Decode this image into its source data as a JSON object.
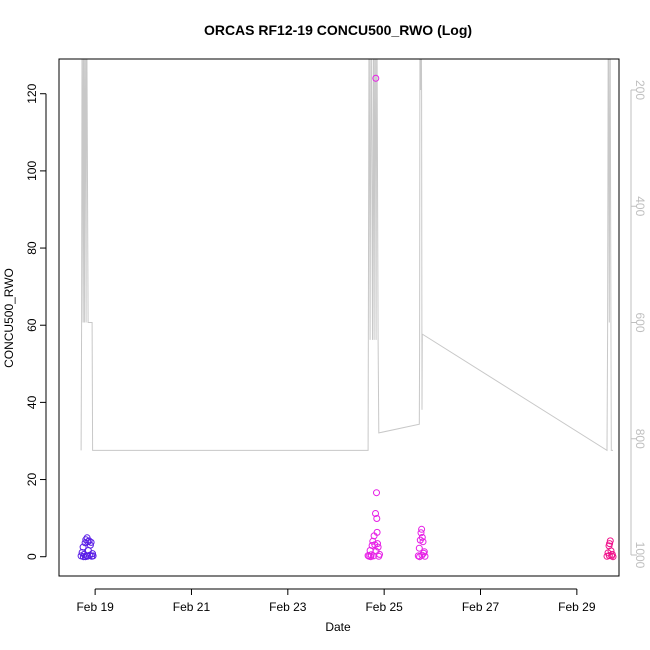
{
  "chart_data": {
    "type": "scatter",
    "title": "ORCAS RF12-19 CONCU500_RWO (Log)",
    "xlabel": "Date",
    "ylabel": "CONCU500_RWO",
    "x_unit": "date",
    "xlim": [
      "2016-02-18T06:00",
      "2016-02-29T21:00"
    ],
    "ylim": [
      -5,
      129
    ],
    "y_ticks": [
      0,
      20,
      40,
      60,
      80,
      100,
      120
    ],
    "x_ticks": [
      {
        "date": "2016-02-19",
        "label": "Feb 19"
      },
      {
        "date": "2016-02-21",
        "label": "Feb 21"
      },
      {
        "date": "2016-02-23",
        "label": "Feb 23"
      },
      {
        "date": "2016-02-25",
        "label": "Feb 25"
      },
      {
        "date": "2016-02-27",
        "label": "Feb 27"
      },
      {
        "date": "2016-02-29",
        "label": "Feb 29"
      }
    ],
    "y2_axis": {
      "side": "right",
      "color": "#bfbfbf",
      "inverted": true,
      "ticks": [
        200,
        400,
        600,
        800,
        1000
      ]
    },
    "scatter_series": [
      {
        "color": "#5a1ee6",
        "points": [
          [
            "2016-02-18T17:00",
            0.2
          ],
          [
            "2016-02-18T17:30",
            1.1
          ],
          [
            "2016-02-18T18:00",
            2.5
          ],
          [
            "2016-02-18T18:30",
            0.6
          ],
          [
            "2016-02-18T19:00",
            3.6
          ],
          [
            "2016-02-18T19:20",
            4.4
          ],
          [
            "2016-02-18T19:40",
            0.3
          ],
          [
            "2016-02-18T20:00",
            4.9
          ],
          [
            "2016-02-18T20:20",
            3.9
          ],
          [
            "2016-02-18T20:40",
            1.6
          ],
          [
            "2016-02-18T21:00",
            4.1
          ],
          [
            "2016-02-18T21:20",
            0.4
          ],
          [
            "2016-02-18T21:40",
            3.0
          ],
          [
            "2016-02-18T22:00",
            3.7
          ],
          [
            "2016-02-18T22:20",
            0.1
          ],
          [
            "2016-02-18T22:40",
            0.8
          ],
          [
            "2016-02-18T23:00",
            0.2
          ],
          [
            "2016-02-18T18:10",
            0.0
          ],
          [
            "2016-02-18T19:10",
            0.0
          ],
          [
            "2016-02-18T20:10",
            0.1
          ]
        ]
      },
      {
        "color": "#e61ee6",
        "points": [
          [
            "2016-02-24T16:00",
            0.3
          ],
          [
            "2016-02-24T16:30",
            0.1
          ],
          [
            "2016-02-24T17:00",
            1.6
          ],
          [
            "2016-02-24T17:30",
            0.5
          ],
          [
            "2016-02-24T18:00",
            2.9
          ],
          [
            "2016-02-24T18:20",
            4.0
          ],
          [
            "2016-02-24T18:40",
            0.2
          ],
          [
            "2016-02-24T19:00",
            5.4
          ],
          [
            "2016-02-24T19:20",
            3.1
          ],
          [
            "2016-02-24T19:40",
            11.2
          ],
          [
            "2016-02-24T20:00",
            1.4
          ],
          [
            "2016-02-24T20:10",
            16.6
          ],
          [
            "2016-02-24T20:20",
            9.9
          ],
          [
            "2016-02-24T20:30",
            6.3
          ],
          [
            "2016-02-24T20:40",
            3.4
          ],
          [
            "2016-02-24T21:00",
            2.5
          ],
          [
            "2016-02-24T21:20",
            0.1
          ],
          [
            "2016-02-24T21:40",
            0.6
          ],
          [
            "2016-02-24T19:50",
            124.0
          ],
          [
            "2016-02-24T17:20",
            0.0
          ],
          [
            "2016-02-25T17:00",
            0.2
          ],
          [
            "2016-02-25T17:30",
            2.2
          ],
          [
            "2016-02-25T18:00",
            4.3
          ],
          [
            "2016-02-25T18:20",
            6.2
          ],
          [
            "2016-02-25T18:40",
            7.1
          ],
          [
            "2016-02-25T19:00",
            5.0
          ],
          [
            "2016-02-25T19:20",
            3.9
          ],
          [
            "2016-02-25T19:40",
            0.9
          ],
          [
            "2016-02-25T20:00",
            1.3
          ],
          [
            "2016-02-25T20:20",
            0.1
          ],
          [
            "2016-02-25T17:40",
            0.0
          ],
          [
            "2016-02-25T18:50",
            0.4
          ]
        ]
      },
      {
        "color": "#f0148c",
        "points": [
          [
            "2016-02-29T15:00",
            0.1
          ],
          [
            "2016-02-29T15:30",
            1.0
          ],
          [
            "2016-02-29T16:00",
            2.8
          ],
          [
            "2016-02-29T16:20",
            3.4
          ],
          [
            "2016-02-29T16:40",
            4.1
          ],
          [
            "2016-02-29T17:00",
            1.5
          ],
          [
            "2016-02-29T17:20",
            0.2
          ],
          [
            "2016-02-29T17:40",
            0.6
          ],
          [
            "2016-02-29T18:00",
            0.0
          ],
          [
            "2016-02-29T16:10",
            0.3
          ]
        ]
      }
    ],
    "altitude_line": {
      "color": "#c8c8c8",
      "y2_points": [
        [
          "2016-02-18T17:00",
          820
        ],
        [
          "2016-02-18T17:15",
          600
        ],
        [
          "2016-02-18T17:30",
          2
        ],
        [
          "2016-02-18T18:00",
          600
        ],
        [
          "2016-02-18T18:15",
          2
        ],
        [
          "2016-02-18T18:40",
          600
        ],
        [
          "2016-02-18T19:00",
          2
        ],
        [
          "2016-02-18T19:30",
          600
        ],
        [
          "2016-02-18T19:45",
          2
        ],
        [
          "2016-02-18T20:30",
          600
        ],
        [
          "2016-02-18T22:30",
          600
        ],
        [
          "2016-02-18T22:45",
          820
        ],
        [
          "2016-02-24T16:00",
          820
        ],
        [
          "2016-02-24T16:30",
          2
        ],
        [
          "2016-02-24T17:00",
          630
        ],
        [
          "2016-02-24T17:30",
          2
        ],
        [
          "2016-02-24T18:10",
          630
        ],
        [
          "2016-02-24T18:40",
          2
        ],
        [
          "2016-02-24T19:00",
          630
        ],
        [
          "2016-02-24T19:30",
          2
        ],
        [
          "2016-02-24T20:00",
          630
        ],
        [
          "2016-02-24T20:20",
          2
        ],
        [
          "2016-02-24T21:00",
          630
        ],
        [
          "2016-02-24T21:20",
          790
        ],
        [
          "2016-02-25T17:30",
          775
        ],
        [
          "2016-02-25T17:40",
          650
        ],
        [
          "2016-02-25T17:50",
          2
        ],
        [
          "2016-02-25T18:10",
          200
        ],
        [
          "2016-02-25T18:20",
          2
        ],
        [
          "2016-02-25T18:40",
          200
        ],
        [
          "2016-02-25T18:50",
          750
        ],
        [
          "2016-02-25T19:00",
          620
        ],
        [
          "2016-02-29T15:00",
          820
        ],
        [
          "2016-02-29T15:20",
          620
        ],
        [
          "2016-02-29T15:40",
          2
        ],
        [
          "2016-02-29T16:10",
          600
        ],
        [
          "2016-02-29T16:30",
          2
        ],
        [
          "2016-02-29T17:00",
          640
        ],
        [
          "2016-02-29T17:10",
          820
        ],
        [
          "2016-02-29T18:00",
          820
        ]
      ]
    }
  }
}
